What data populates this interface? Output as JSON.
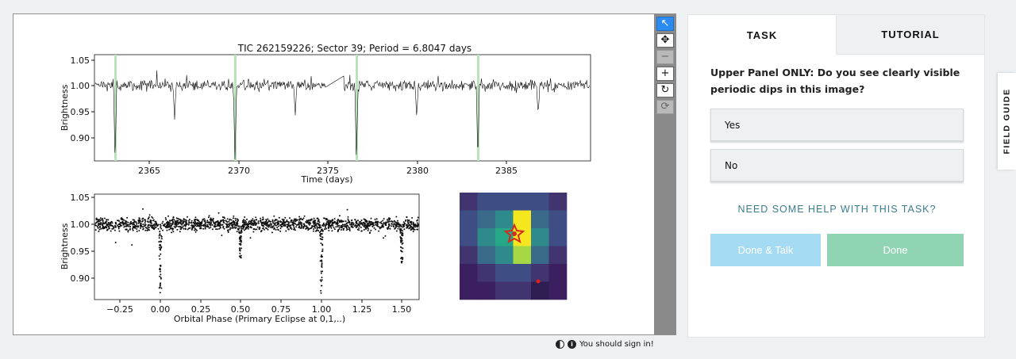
{
  "subject": {
    "top_plot": {
      "title": "TIC 262159226; Sector 39; Period = 6.8047 days",
      "xlabel": "Time (days)",
      "ylabel": "Brightness",
      "x_ticks": [
        "2365",
        "2370",
        "2375",
        "2380",
        "2385"
      ],
      "y_ticks": [
        "1.05",
        "1.00",
        "0.95",
        "0.90"
      ]
    },
    "bottom_plot": {
      "xlabel": "Orbital Phase (Primary Eclipse at 0,1,..)",
      "ylabel": "Brightness",
      "x_ticks": [
        "−0.25",
        "0.00",
        "0.25",
        "0.50",
        "0.75",
        "1.00",
        "1.25",
        "1.50"
      ],
      "y_ticks": [
        "1.05",
        "1.00",
        "0.95",
        "0.90"
      ]
    },
    "highlight_color": "#b9e3b9",
    "tools": [
      {
        "name": "pointer-tool",
        "glyph": "↖",
        "state": "active"
      },
      {
        "name": "move-tool",
        "glyph": "✥",
        "state": "normal"
      },
      {
        "name": "zoom-out-tool",
        "glyph": "−",
        "state": "disabled"
      },
      {
        "name": "zoom-in-tool",
        "glyph": "+",
        "state": "normal"
      },
      {
        "name": "reset-tool",
        "glyph": "↻",
        "state": "normal"
      },
      {
        "name": "rotate-tool",
        "glyph": "⟳",
        "state": "disabled"
      }
    ],
    "footer": {
      "sign_in": "You should sign in!"
    }
  },
  "task_panel": {
    "tabs": {
      "task": "TASK",
      "tutorial": "TUTORIAL"
    },
    "question": "Upper Panel ONLY: Do you see clearly visible periodic dips in this image?",
    "answers": [
      "Yes",
      "No"
    ],
    "help_link": "NEED SOME HELP WITH THIS TASK?",
    "done_talk": "Done & Talk",
    "done": "Done",
    "colors": {
      "done_talk": "#a4dbf3",
      "done": "#91d4b4",
      "help_link": "#3b7b8e"
    }
  },
  "field_guide": "FIELD GUIDE"
}
